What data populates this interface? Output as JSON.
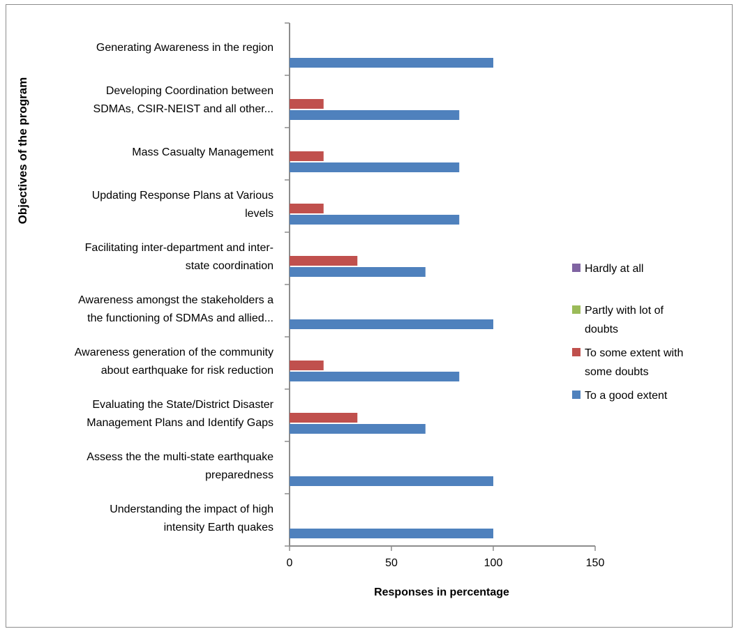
{
  "chart_data": {
    "type": "bar",
    "orientation": "horizontal",
    "ylabel": "Objectives of the program",
    "xlabel": "Responses in percentage",
    "xlim": [
      0,
      150
    ],
    "xticks": [
      "0",
      "50",
      "100",
      "150"
    ],
    "grid": false,
    "legend_position": "right",
    "categories": [
      [
        "Generating  Awareness in the region"
      ],
      [
        "Developing  Coordination between",
        "SDMAs, CSIR-NEIST and  all other..."
      ],
      [
        "Mass Casualty Management"
      ],
      [
        "Updating Response Plans at Various",
        "levels"
      ],
      [
        "Facilitating inter-department and inter-",
        "state coordination"
      ],
      [
        "Awareness amongst the stakeholders a",
        "the functioning of SDMAs and allied..."
      ],
      [
        "Awareness generation of the community",
        "about  earthquake for risk reduction"
      ],
      [
        "Evaluating  the State/District Disaster",
        "Management Plans and Identify Gaps"
      ],
      [
        "Assess the  the multi-state earthquake",
        "preparedness"
      ],
      [
        "Understanding the impact of high",
        "intensity Earth quakes"
      ]
    ],
    "series": [
      {
        "name": "To a good extent",
        "color": "#4f81bd",
        "values": [
          100,
          83.3,
          83.3,
          83.3,
          66.7,
          100,
          83.3,
          66.7,
          100,
          100
        ]
      },
      {
        "name": "To some extent with some doubts",
        "color": "#c0504d",
        "values": [
          0,
          16.7,
          16.7,
          16.7,
          33.3,
          0,
          16.7,
          33.3,
          0,
          0
        ]
      },
      {
        "name": "Partly with lot of doubts",
        "color": "#9bbb59",
        "values": [
          0,
          0,
          0,
          0,
          0,
          0,
          0,
          0,
          0,
          0
        ]
      },
      {
        "name": "Hardly at all",
        "color": "#8064a2",
        "values": [
          0,
          0,
          0,
          0,
          0,
          0,
          0,
          0,
          0,
          0
        ]
      }
    ],
    "legend": [
      {
        "lines": [
          "Hardly at all"
        ],
        "color": "#8064a2"
      },
      {
        "lines": [
          "Partly with lot of",
          "doubts"
        ],
        "color": "#9bbb59"
      },
      {
        "lines": [
          "To some extent with",
          "some doubts"
        ],
        "color": "#c0504d"
      },
      {
        "lines": [
          "To a good extent"
        ],
        "color": "#4f81bd"
      }
    ]
  }
}
